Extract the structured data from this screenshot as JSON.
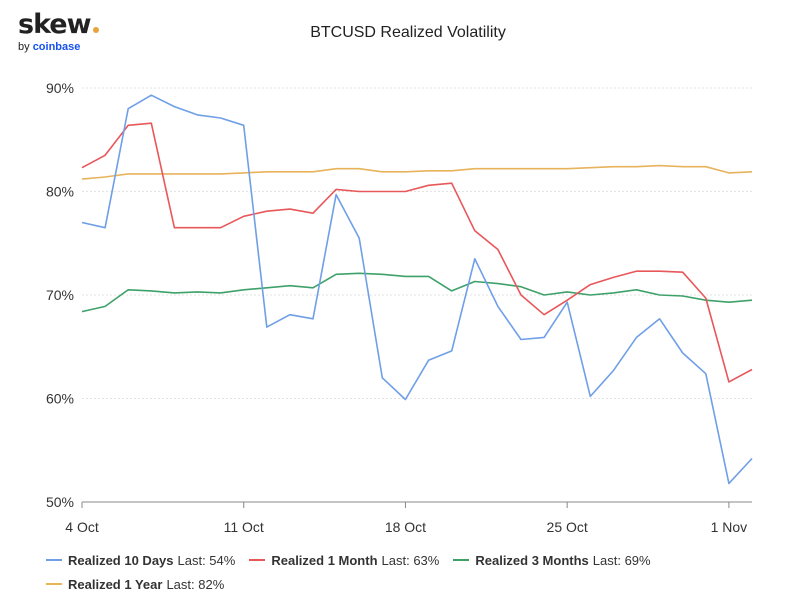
{
  "logo": {
    "brand": "skew",
    "by": "by",
    "company": "coinbase",
    "dot_color": "#e8a33d",
    "company_color": "#1652f0"
  },
  "chart_data": {
    "type": "line",
    "title": "BTCUSD Realized Volatility",
    "xlabel": "",
    "ylabel": "",
    "x_tick_labels": [
      "4 Oct",
      "11 Oct",
      "18 Oct",
      "25 Oct",
      "1 Nov"
    ],
    "y_tick_labels": [
      "50%",
      "60%",
      "70%",
      "80%",
      "90%"
    ],
    "y_ticks": [
      50,
      60,
      70,
      80,
      90
    ],
    "ylim": [
      50,
      90
    ],
    "x": [
      "4 Oct",
      "5 Oct",
      "6 Oct",
      "7 Oct",
      "8 Oct",
      "9 Oct",
      "10 Oct",
      "11 Oct",
      "12 Oct",
      "13 Oct",
      "14 Oct",
      "15 Oct",
      "16 Oct",
      "17 Oct",
      "18 Oct",
      "19 Oct",
      "20 Oct",
      "21 Oct",
      "22 Oct",
      "23 Oct",
      "24 Oct",
      "25 Oct",
      "26 Oct",
      "27 Oct",
      "28 Oct",
      "29 Oct",
      "30 Oct",
      "31 Oct",
      "1 Nov",
      "2 Nov"
    ],
    "grid": true,
    "legend_position": "bottom",
    "series": [
      {
        "name": "Realized 10 Days",
        "last_label": "Last: 54%",
        "color": "#6f9fe6",
        "values": [
          77.0,
          76.5,
          88.0,
          89.3,
          88.2,
          87.4,
          87.1,
          86.4,
          66.9,
          68.1,
          67.7,
          79.7,
          75.5,
          62.0,
          59.9,
          63.7,
          64.6,
          73.5,
          68.9,
          65.7,
          65.9,
          69.3,
          60.2,
          62.7,
          65.9,
          67.7,
          64.4,
          62.4,
          51.8,
          54.2
        ]
      },
      {
        "name": "Realized 1 Month",
        "last_label": "Last: 63%",
        "color": "#e8575a",
        "values": [
          82.3,
          83.5,
          86.4,
          86.6,
          76.5,
          76.5,
          76.5,
          77.6,
          78.1,
          78.3,
          77.9,
          80.2,
          80.0,
          80.0,
          80.0,
          80.6,
          80.8,
          76.2,
          74.4,
          70.0,
          68.1,
          69.5,
          71.0,
          71.7,
          72.3,
          72.3,
          72.2,
          69.7,
          61.6,
          62.8
        ]
      },
      {
        "name": "Realized 3 Months",
        "last_label": "Last: 69%",
        "color": "#3fa16a",
        "values": [
          68.4,
          68.9,
          70.5,
          70.4,
          70.2,
          70.3,
          70.2,
          70.5,
          70.7,
          70.9,
          70.7,
          72.0,
          72.1,
          72.0,
          71.8,
          71.8,
          70.4,
          71.3,
          71.1,
          70.8,
          70.0,
          70.3,
          70.0,
          70.2,
          70.5,
          70.0,
          69.9,
          69.5,
          69.3,
          69.5
        ]
      },
      {
        "name": "Realized 1 Year",
        "last_label": "Last: 82%",
        "color": "#e7b35b",
        "values": [
          81.2,
          81.4,
          81.7,
          81.7,
          81.7,
          81.7,
          81.7,
          81.8,
          81.9,
          81.9,
          81.9,
          82.2,
          82.2,
          81.9,
          81.9,
          82.0,
          82.0,
          82.2,
          82.2,
          82.2,
          82.2,
          82.2,
          82.3,
          82.4,
          82.4,
          82.5,
          82.4,
          82.4,
          81.8,
          81.9
        ]
      }
    ]
  }
}
